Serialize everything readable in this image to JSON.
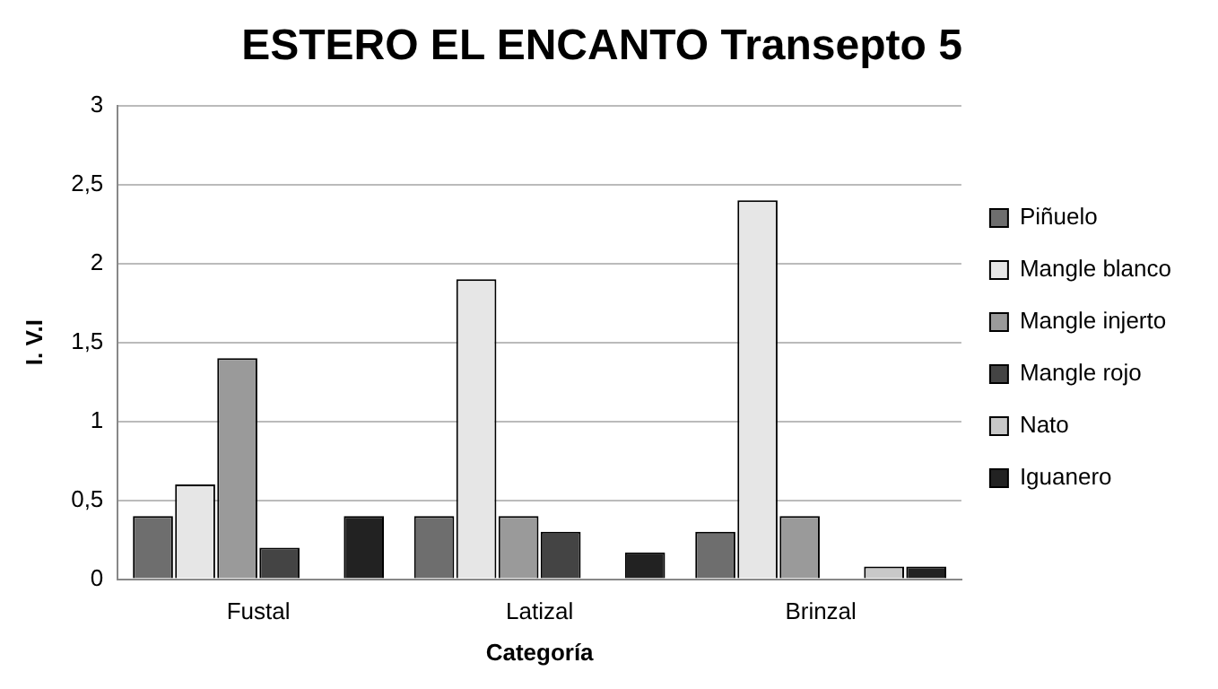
{
  "chart_data": {
    "type": "bar",
    "title": "ESTERO EL ENCANTO Transepto 5",
    "xlabel": "Categoría",
    "ylabel": "I. V.I",
    "categories": [
      "Fustal",
      "Latizal",
      "Brinzal"
    ],
    "series": [
      {
        "name": "Piñuelo",
        "color": "#6e6e6e",
        "values": [
          0.4,
          0.4,
          0.3
        ]
      },
      {
        "name": "Mangle blanco",
        "color": "#e6e6e6",
        "values": [
          0.6,
          1.9,
          2.4
        ]
      },
      {
        "name": "Mangle injerto",
        "color": "#9a9a9a",
        "values": [
          1.4,
          0.4,
          0.4
        ]
      },
      {
        "name": "Mangle rojo",
        "color": "#444444",
        "values": [
          0.2,
          0.3,
          null
        ]
      },
      {
        "name": "Nato",
        "color": "#c8c8c8",
        "values": [
          null,
          null,
          0.08
        ]
      },
      {
        "name": "Iguanero",
        "color": "#222222",
        "values": [
          0.4,
          0.17,
          0.08
        ]
      }
    ],
    "ylim": [
      0,
      3
    ],
    "yticks": [
      0,
      {
        "value": 0.5,
        "label": "0,5"
      },
      1,
      {
        "value": 1.5,
        "label": "1,5"
      },
      2,
      {
        "value": 2.5,
        "label": "2,5"
      },
      3
    ],
    "grid": "y",
    "legend": "right"
  }
}
